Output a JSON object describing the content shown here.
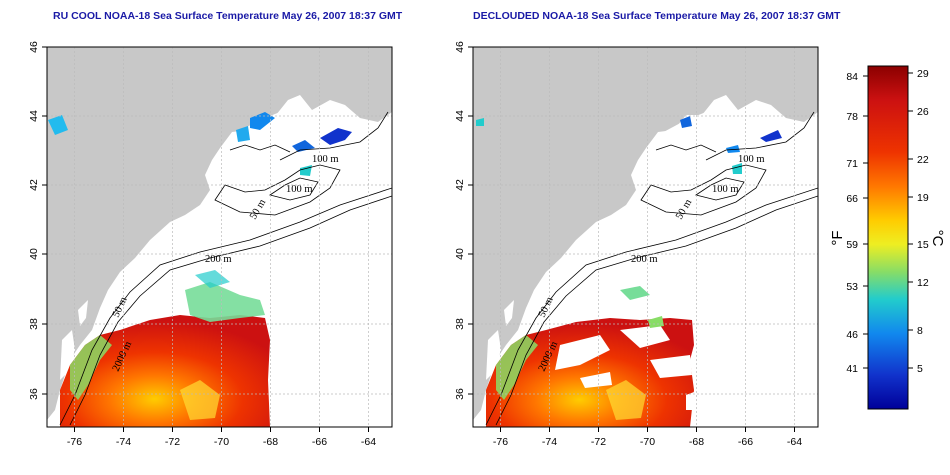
{
  "panels": [
    {
      "title": "RU COOL NOAA-18 Sea Surface Temperature May 26, 2007 18:37 GMT",
      "contour_labels": [
        "100 m",
        "100 m",
        "50 m",
        "200 m",
        "50 m",
        "2000 m"
      ]
    },
    {
      "title": "DECLOUDED NOAA-18 Sea Surface Temperature May 26, 2007 18:37 GMT",
      "contour_labels": [
        "100 m",
        "100 m",
        "50 m",
        "200 m",
        "50 m",
        "2000 m"
      ]
    }
  ],
  "axes": {
    "lon_ticks": [
      "-76",
      "-74",
      "-72",
      "-70",
      "-68",
      "-66",
      "-64"
    ],
    "lat_ticks": [
      "36",
      "38",
      "40",
      "42",
      "44",
      "46"
    ],
    "lon_range": [
      -77,
      -63
    ],
    "lat_range": [
      35,
      46
    ]
  },
  "colorbar": {
    "fahrenheit_ticks": [
      "84",
      "78",
      "71",
      "66",
      "59",
      "53",
      "46",
      "41"
    ],
    "celsius_ticks": [
      "29",
      "26",
      "22",
      "19",
      "15",
      "12",
      "8",
      "5"
    ],
    "fahrenheit_label": "°F",
    "celsius_label": "°C",
    "colors": [
      "#8b0000",
      "#cc1111",
      "#ee3300",
      "#ff7700",
      "#ffcc00",
      "#eeee22",
      "#88dd66",
      "#22cccc",
      "#1188ee",
      "#1133cc",
      "#000099"
    ]
  },
  "colors": {
    "land": "#c8c8c8",
    "water": "#ffffff",
    "grid": "#bbbbbb"
  }
}
